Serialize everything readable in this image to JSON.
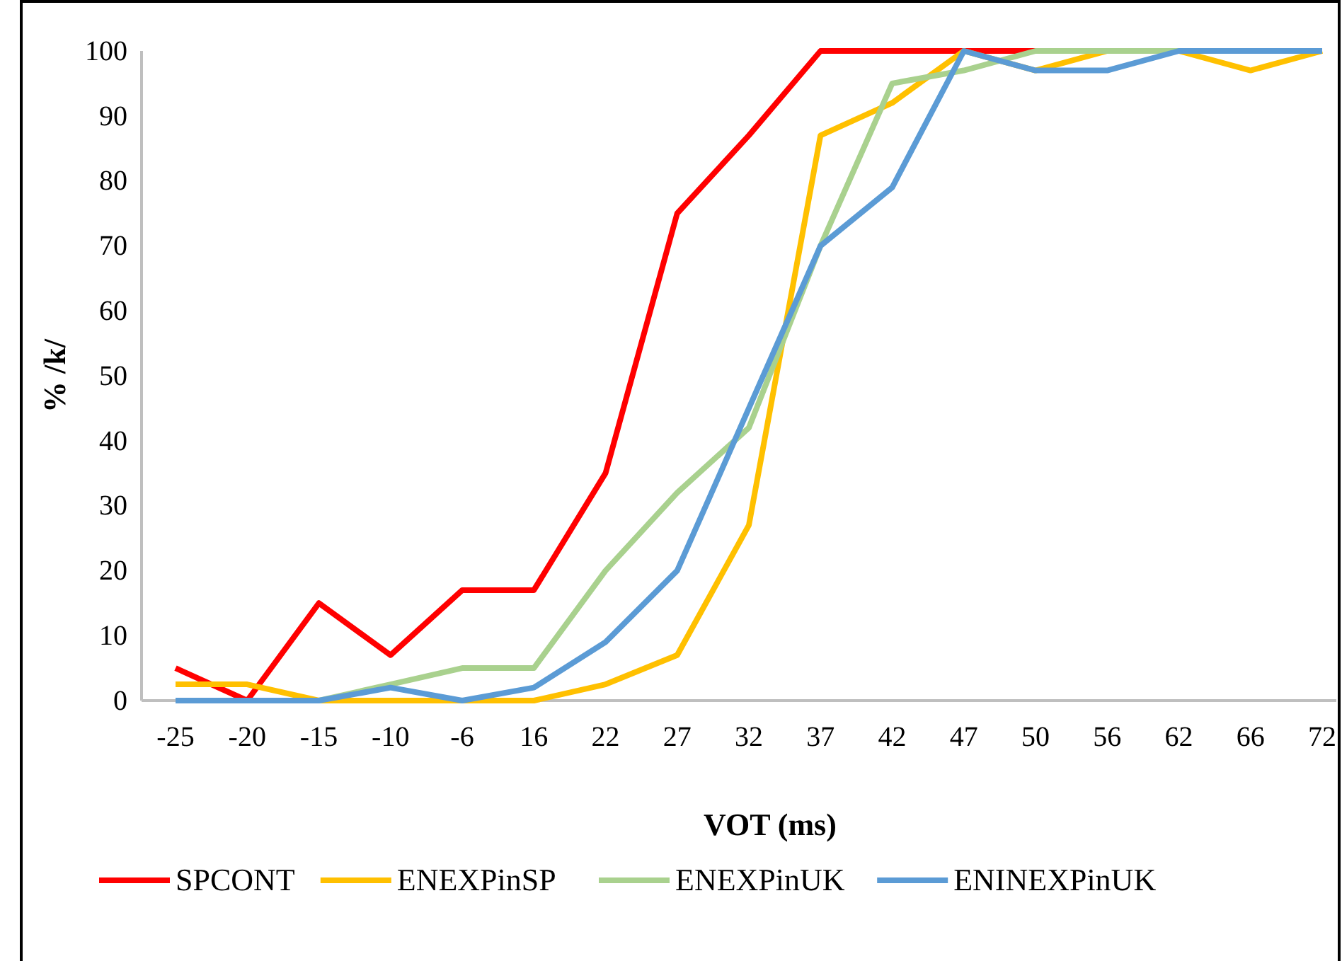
{
  "chart_data": {
    "type": "line",
    "xlabel": "VOT (ms)",
    "ylabel": "% /k/",
    "categories": [
      "-25",
      "-20",
      "-15",
      "-10",
      "-6",
      "16",
      "22",
      "27",
      "32",
      "37",
      "42",
      "47",
      "50",
      "56",
      "62",
      "66",
      "72"
    ],
    "series": [
      {
        "name": "SPCONT",
        "color": "#ff0000",
        "values": [
          5,
          0,
          15,
          7,
          17,
          17,
          35,
          75,
          87,
          100,
          100,
          100,
          100,
          null,
          null,
          null,
          null
        ]
      },
      {
        "name": "ENEXPinSP",
        "color": "#ffc000",
        "values": [
          2.5,
          2.5,
          0,
          0,
          0,
          0,
          2.5,
          7,
          27,
          87,
          92,
          100,
          97,
          100,
          100,
          97,
          100
        ]
      },
      {
        "name": "ENEXPinUK",
        "color": "#a9d18e",
        "values": [
          0,
          0,
          0,
          2.5,
          5,
          5,
          20,
          32,
          42,
          70,
          95,
          97,
          100,
          100,
          100,
          null,
          null
        ]
      },
      {
        "name": "ENINEXPinUK",
        "color": "#5b9bd5",
        "values": [
          0,
          0,
          0,
          2,
          0,
          2,
          9,
          20,
          45,
          70,
          79,
          100,
          97,
          97,
          100,
          100,
          100
        ]
      }
    ],
    "ylim": [
      0,
      100
    ],
    "yticks": [
      0,
      10,
      20,
      30,
      40,
      50,
      60,
      70,
      80,
      90,
      100
    ],
    "grid": false,
    "legend": "bottom",
    "marker": "none",
    "line_style": "solid"
  }
}
